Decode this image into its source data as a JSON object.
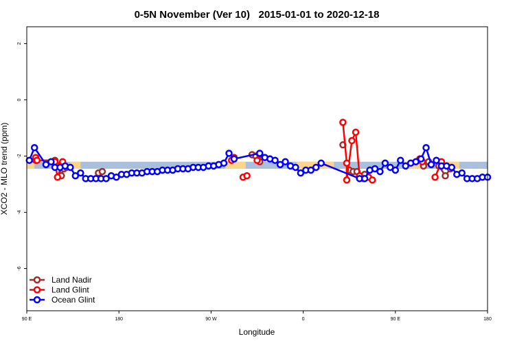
{
  "chart_data": {
    "type": "line",
    "title": "0-5N November (Ver 10)   2015-01-01 to 2020-12-18",
    "xlabel": "Longitude",
    "ylabel": "XCO2 - MLO trend (ppm)",
    "xlim": [
      90,
      450
    ],
    "ylim": [
      -7.5,
      2.6
    ],
    "x_tick_values": [
      90,
      162,
      234,
      306,
      378,
      450
    ],
    "x_tick_labels": [
      "90 E",
      "180",
      "90 W",
      "0",
      "90 E",
      "180"
    ],
    "y_tick_values": [
      2,
      0,
      -2,
      -4,
      -6
    ],
    "y_tick_labels": [
      "2",
      "0",
      "-2",
      "-4",
      "-6"
    ],
    "band_colors": {
      "blue": "#a9bfdc",
      "orange": "#fdd58a"
    },
    "band_blue": {
      "ymin": -2.45,
      "ymax": -2.2
    },
    "band_orange_segments": [
      {
        "x0": 90,
        "x1": 96,
        "ymin": -2.45,
        "ymax": -2.2
      },
      {
        "x0": 124,
        "x1": 132,
        "ymin": -2.45,
        "ymax": -2.2
      },
      {
        "x0": 245,
        "x1": 261,
        "ymin": -2.45,
        "ymax": -2.2
      },
      {
        "x0": 301,
        "x1": 330,
        "ymin": -2.45,
        "ymax": -2.2
      },
      {
        "x0": 385,
        "x1": 399,
        "ymin": -2.45,
        "ymax": -2.2
      },
      {
        "x0": 414,
        "x1": 428,
        "ymin": -2.45,
        "ymax": -2.2
      }
    ],
    "legend_position": "bottom-left",
    "grid": false,
    "series": [
      {
        "name": "Land Nadir",
        "color": "#a52a2a",
        "segments": [
          [
            {
              "x": 97,
              "y": -2.15
            },
            {
              "x": 112,
              "y": -2.15
            }
          ],
          [
            {
              "x": 115,
              "y": -2.35
            },
            {
              "x": 117,
              "y": -2.7
            },
            {
              "x": 119,
              "y": -2.45
            },
            {
              "x": 121,
              "y": -2.4
            }
          ],
          [
            {
              "x": 146,
              "y": -2.6
            },
            {
              "x": 149,
              "y": -2.55
            }
          ],
          [
            {
              "x": 266,
              "y": -1.95
            },
            {
              "x": 269,
              "y": -2.0
            },
            {
              "x": 272,
              "y": -2.2
            }
          ],
          [
            {
              "x": 337,
              "y": -1.6
            }
          ],
          [
            {
              "x": 342,
              "y": -2.5
            },
            {
              "x": 345,
              "y": -2.55
            },
            {
              "x": 348,
              "y": -2.55
            }
          ],
          [
            {
              "x": 354,
              "y": -2.65
            },
            {
              "x": 357,
              "y": -2.75
            }
          ],
          [
            {
              "x": 400,
              "y": -2.35
            },
            {
              "x": 404,
              "y": -2.2
            }
          ],
          [
            {
              "x": 412,
              "y": -2.35
            },
            {
              "x": 417,
              "y": -2.7
            },
            {
              "x": 421,
              "y": -2.45
            }
          ]
        ]
      },
      {
        "name": "Land Glint",
        "color": "#ff0000",
        "segments": [
          [
            {
              "x": 97,
              "y": -2.05
            },
            {
              "x": 98,
              "y": -2.15
            }
          ],
          [
            {
              "x": 112,
              "y": -2.2
            },
            {
              "x": 114,
              "y": -2.75
            },
            {
              "x": 117,
              "y": -2.35
            },
            {
              "x": 118,
              "y": -2.2
            }
          ],
          [
            {
              "x": 250,
              "y": -2.15
            },
            {
              "x": 252,
              "y": -2.05
            }
          ],
          [
            {
              "x": 259,
              "y": -2.75
            },
            {
              "x": 262,
              "y": -2.7
            }
          ],
          [
            {
              "x": 270,
              "y": -2.15
            },
            {
              "x": 272,
              "y": -1.95
            }
          ],
          [
            {
              "x": 337,
              "y": -0.8
            },
            {
              "x": 340,
              "y": -2.25
            },
            {
              "x": 340,
              "y": -2.85
            },
            {
              "x": 344,
              "y": -1.45
            },
            {
              "x": 347,
              "y": -1.15
            },
            {
              "x": 350,
              "y": -2.7
            },
            {
              "x": 353,
              "y": -2.8
            },
            {
              "x": 357,
              "y": -2.75
            },
            {
              "x": 360,
              "y": -2.85
            }
          ],
          [
            {
              "x": 397,
              "y": -2.1
            },
            {
              "x": 399,
              "y": -2.2
            }
          ],
          [
            {
              "x": 409,
              "y": -2.75
            },
            {
              "x": 414,
              "y": -2.2
            }
          ]
        ]
      },
      {
        "name": "Ocean Glint",
        "color": "#0000ff",
        "points": [
          {
            "x": 92,
            "y": -2.15
          },
          {
            "x": 96,
            "y": -1.7
          },
          {
            "x": 105,
            "y": -2.3
          },
          {
            "x": 109,
            "y": -2.2
          },
          {
            "x": 112,
            "y": -2.4
          },
          {
            "x": 116,
            "y": -2.4
          },
          {
            "x": 120,
            "y": -2.35
          },
          {
            "x": 124,
            "y": -2.4
          },
          {
            "x": 128,
            "y": -2.7
          },
          {
            "x": 132,
            "y": -2.6
          },
          {
            "x": 136,
            "y": -2.8
          },
          {
            "x": 140,
            "y": -2.8
          },
          {
            "x": 144,
            "y": -2.8
          },
          {
            "x": 148,
            "y": -2.8
          },
          {
            "x": 152,
            "y": -2.8
          },
          {
            "x": 156,
            "y": -2.7
          },
          {
            "x": 160,
            "y": -2.75
          },
          {
            "x": 164,
            "y": -2.65
          },
          {
            "x": 168,
            "y": -2.65
          },
          {
            "x": 172,
            "y": -2.6
          },
          {
            "x": 176,
            "y": -2.6
          },
          {
            "x": 180,
            "y": -2.6
          },
          {
            "x": 184,
            "y": -2.55
          },
          {
            "x": 188,
            "y": -2.55
          },
          {
            "x": 192,
            "y": -2.55
          },
          {
            "x": 196,
            "y": -2.5
          },
          {
            "x": 200,
            "y": -2.5
          },
          {
            "x": 204,
            "y": -2.5
          },
          {
            "x": 208,
            "y": -2.45
          },
          {
            "x": 212,
            "y": -2.45
          },
          {
            "x": 216,
            "y": -2.45
          },
          {
            "x": 220,
            "y": -2.4
          },
          {
            "x": 224,
            "y": -2.4
          },
          {
            "x": 228,
            "y": -2.4
          },
          {
            "x": 232,
            "y": -2.35
          },
          {
            "x": 236,
            "y": -2.35
          },
          {
            "x": 240,
            "y": -2.3
          },
          {
            "x": 244,
            "y": -2.25
          },
          {
            "x": 248,
            "y": -1.9
          },
          {
            "x": 252,
            "y": -2.1
          },
          {
            "x": 272,
            "y": -1.9
          },
          {
            "x": 276,
            "y": -2.05
          },
          {
            "x": 280,
            "y": -2.1
          },
          {
            "x": 284,
            "y": -2.15
          },
          {
            "x": 288,
            "y": -2.3
          },
          {
            "x": 292,
            "y": -2.2
          },
          {
            "x": 296,
            "y": -2.35
          },
          {
            "x": 300,
            "y": -2.4
          },
          {
            "x": 304,
            "y": -2.6
          },
          {
            "x": 308,
            "y": -2.5
          },
          {
            "x": 312,
            "y": -2.5
          },
          {
            "x": 316,
            "y": -2.4
          },
          {
            "x": 320,
            "y": -2.25
          },
          {
            "x": 350,
            "y": -2.8
          },
          {
            "x": 354,
            "y": -2.8
          },
          {
            "x": 358,
            "y": -2.5
          },
          {
            "x": 362,
            "y": -2.45
          },
          {
            "x": 366,
            "y": -2.55
          },
          {
            "x": 370,
            "y": -2.25
          },
          {
            "x": 374,
            "y": -2.4
          },
          {
            "x": 378,
            "y": -2.5
          },
          {
            "x": 382,
            "y": -2.15
          },
          {
            "x": 386,
            "y": -2.35
          },
          {
            "x": 390,
            "y": -2.25
          },
          {
            "x": 394,
            "y": -2.2
          },
          {
            "x": 398,
            "y": -2.1
          },
          {
            "x": 402,
            "y": -1.7
          },
          {
            "x": 406,
            "y": -2.3
          },
          {
            "x": 410,
            "y": -2.15
          },
          {
            "x": 414,
            "y": -2.35
          },
          {
            "x": 418,
            "y": -2.35
          },
          {
            "x": 422,
            "y": -2.4
          },
          {
            "x": 426,
            "y": -2.65
          },
          {
            "x": 430,
            "y": -2.6
          },
          {
            "x": 434,
            "y": -2.8
          },
          {
            "x": 438,
            "y": -2.8
          },
          {
            "x": 442,
            "y": -2.8
          },
          {
            "x": 446,
            "y": -2.75
          },
          {
            "x": 450,
            "y": -2.75
          }
        ]
      }
    ]
  }
}
